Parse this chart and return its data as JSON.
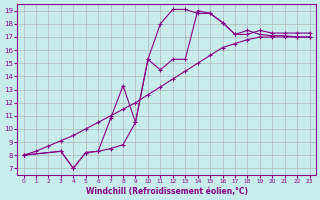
{
  "xlabel": "Windchill (Refroidissement éolien,°C)",
  "bg_color": "#c8ecec",
  "line_color": "#880088",
  "grid_color": "#aaaaaa",
  "xlim": [
    -0.5,
    23.5
  ],
  "ylim": [
    6.5,
    19.5
  ],
  "xticks": [
    0,
    1,
    2,
    3,
    4,
    5,
    6,
    7,
    8,
    9,
    10,
    11,
    12,
    13,
    14,
    15,
    16,
    17,
    18,
    19,
    20,
    21,
    22,
    23
  ],
  "yticks": [
    7,
    8,
    9,
    10,
    11,
    12,
    13,
    14,
    15,
    16,
    17,
    18,
    19
  ],
  "series1_x": [
    0,
    3,
    4,
    5,
    6,
    7,
    8,
    9,
    10,
    11,
    12,
    13,
    14,
    15,
    16,
    17,
    18,
    19,
    20,
    21,
    22,
    23
  ],
  "series1_y": [
    8,
    8.3,
    7.0,
    8.2,
    8.3,
    8.5,
    8.8,
    10.5,
    15.3,
    18.0,
    19.1,
    19.1,
    18.8,
    18.8,
    18.1,
    17.2,
    17.5,
    17.2,
    17.1,
    17.1,
    17.0,
    17.0
  ],
  "series2_x": [
    0,
    3,
    4,
    5,
    6,
    7,
    8,
    9,
    10,
    11,
    12,
    13,
    14,
    15,
    16,
    17,
    18,
    19,
    20,
    21,
    22,
    23
  ],
  "series2_y": [
    8,
    8.3,
    7.0,
    8.2,
    8.3,
    10.8,
    13.3,
    10.5,
    15.3,
    14.5,
    15.3,
    15.3,
    19.0,
    18.8,
    18.1,
    17.2,
    17.2,
    17.5,
    17.3,
    17.3,
    17.3,
    17.3
  ],
  "series3_x": [
    0,
    1,
    2,
    3,
    4,
    5,
    6,
    7,
    8,
    9,
    10,
    11,
    12,
    13,
    14,
    15,
    16,
    17,
    18,
    19,
    20,
    21,
    22,
    23
  ],
  "series3_y": [
    8,
    8.3,
    8.7,
    9.1,
    9.5,
    10.0,
    10.5,
    11.0,
    11.5,
    12.0,
    12.6,
    13.2,
    13.8,
    14.4,
    15.0,
    15.6,
    16.2,
    16.5,
    16.8,
    17.0,
    17.0,
    17.0,
    17.0,
    17.0
  ]
}
